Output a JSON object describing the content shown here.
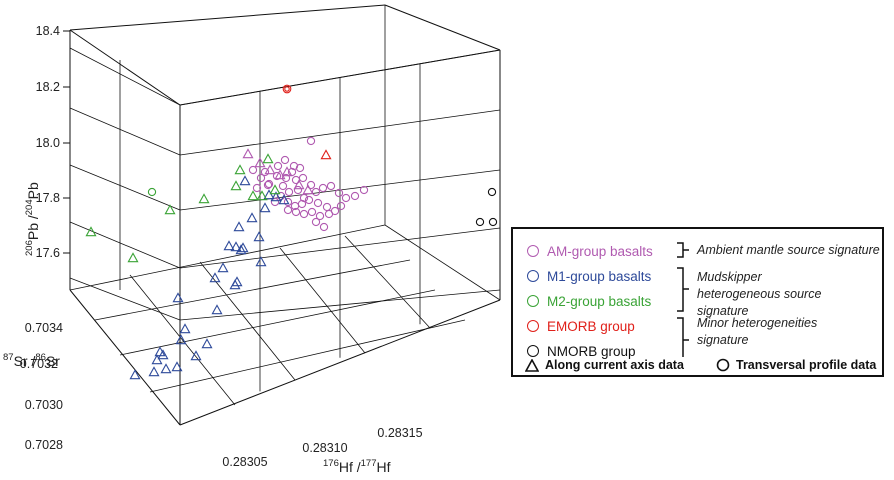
{
  "chart_data": {
    "type": "scatter",
    "title": "",
    "axes": {
      "z": {
        "label_pre": "206",
        "label_mid": "Pb /",
        "label_sup2": "204",
        "label_post": "Pb",
        "range": [
          17.5,
          18.5
        ],
        "ticks": [
          "17.6",
          "17.8",
          "18.0",
          "18.2",
          "18.4"
        ]
      },
      "y": {
        "label_pre": "87",
        "label_mid": "Sr /",
        "label_sup2": "86",
        "label_post": "Sr",
        "range": [
          0.7027,
          0.7035
        ],
        "ticks": [
          "0.7028",
          "0.7030",
          "0.7032",
          "0.7034"
        ]
      },
      "x": {
        "label_pre": "176",
        "label_mid": "Hf /",
        "label_sup2": "177",
        "label_post": "Hf",
        "range": [
          0.283,
          0.2832
        ],
        "ticks": [
          "0.28305",
          "0.28310",
          "0.28315"
        ]
      }
    },
    "series": [
      {
        "name": "AM-group basalts",
        "color": "#b05ab0",
        "points": []
      },
      {
        "name": "M1-group basalts",
        "color": "#2e4a9a",
        "points": []
      },
      {
        "name": "M2-group basalts",
        "color": "#3aa336",
        "points": []
      },
      {
        "name": "EMORB group",
        "color": "#e0201a",
        "points": []
      },
      {
        "name": "NMORB group",
        "color": "#111111",
        "points": []
      }
    ],
    "marker_groups": [
      {
        "name": "Along current axis data",
        "shape": "triangle"
      },
      {
        "name": "Transversal profile data",
        "shape": "circle"
      }
    ],
    "projected_points": {
      "AM_circles": [
        [
          285,
          160
        ],
        [
          292,
          172
        ],
        [
          296,
          180
        ],
        [
          303,
          178
        ],
        [
          311,
          185
        ],
        [
          316,
          192
        ],
        [
          323,
          188
        ],
        [
          331,
          186
        ],
        [
          339,
          193
        ],
        [
          346,
          198
        ],
        [
          355,
          196
        ],
        [
          364,
          190
        ],
        [
          253,
          170
        ],
        [
          261,
          178
        ],
        [
          269,
          184
        ],
        [
          277,
          176
        ],
        [
          283,
          186
        ],
        [
          289,
          192
        ],
        [
          298,
          190
        ],
        [
          304,
          198
        ],
        [
          281,
          196
        ],
        [
          275,
          202
        ],
        [
          288,
          202
        ],
        [
          295,
          206
        ],
        [
          302,
          204
        ],
        [
          309,
          200
        ],
        [
          318,
          203
        ],
        [
          327,
          207
        ],
        [
          335,
          211
        ],
        [
          341,
          206
        ],
        [
          312,
          212
        ],
        [
          320,
          216
        ],
        [
          329,
          214
        ],
        [
          316,
          222
        ],
        [
          324,
          227
        ],
        [
          304,
          214
        ],
        [
          296,
          212
        ],
        [
          288,
          210
        ],
        [
          311,
          141
        ],
        [
          268,
          185
        ],
        [
          257,
          188
        ],
        [
          265,
          172
        ],
        [
          294,
          166
        ],
        [
          300,
          168
        ],
        [
          286,
          178
        ],
        [
          278,
          166
        ]
      ],
      "AM_triangles": [
        [
          248,
          154
        ],
        [
          260,
          163
        ],
        [
          287,
          172
        ],
        [
          299,
          185
        ],
        [
          308,
          190
        ],
        [
          270,
          170
        ],
        [
          280,
          175
        ]
      ],
      "M1_triangles": [
        [
          245,
          181
        ],
        [
          269,
          195
        ],
        [
          276,
          197
        ],
        [
          284,
          200
        ],
        [
          265,
          208
        ],
        [
          252,
          218
        ],
        [
          239,
          227
        ],
        [
          259,
          237
        ],
        [
          243,
          248
        ],
        [
          241,
          250
        ],
        [
          229,
          246
        ],
        [
          236,
          247
        ],
        [
          261,
          262
        ],
        [
          223,
          268
        ],
        [
          215,
          278
        ],
        [
          237,
          282
        ],
        [
          235,
          285
        ],
        [
          178,
          298
        ],
        [
          217,
          310
        ],
        [
          185,
          329
        ],
        [
          181,
          340
        ],
        [
          207,
          344
        ],
        [
          160,
          352
        ],
        [
          163,
          355
        ],
        [
          157,
          360
        ],
        [
          135,
          375
        ],
        [
          154,
          372
        ],
        [
          166,
          369
        ],
        [
          177,
          367
        ],
        [
          196,
          356
        ]
      ],
      "M2_triangles": [
        [
          268,
          159
        ],
        [
          240,
          170
        ],
        [
          253,
          196
        ],
        [
          236,
          186
        ],
        [
          204,
          199
        ],
        [
          170,
          210
        ],
        [
          133,
          258
        ],
        [
          91,
          232
        ],
        [
          262,
          196
        ],
        [
          275,
          190
        ]
      ],
      "M2_circles": [
        [
          152,
          192
        ]
      ],
      "EMORB_circles": [
        [
          287,
          89
        ]
      ],
      "EMORB_triangles": [
        [
          326,
          155
        ]
      ],
      "NMORB_circles": [
        [
          492,
          192
        ],
        [
          480,
          222
        ],
        [
          493,
          222
        ]
      ]
    }
  },
  "legend": {
    "items": [
      {
        "label": "AM-group basalts",
        "color": "#b05ab0"
      },
      {
        "label": "M1-group basalts",
        "color": "#2e4a9a"
      },
      {
        "label": "M2-group basalts",
        "color": "#3aa336"
      },
      {
        "label": "EMORB group",
        "color": "#e0201a"
      },
      {
        "label": "NMORB group",
        "color": "#111111"
      }
    ],
    "signatures": [
      "Ambient mantle source signature",
      "Mudskipper heterogeneous source signature",
      "Minor heterogeneities signature"
    ],
    "footer": {
      "triangle_label": "Along current axis data",
      "circle_label": "Transversal profile data"
    }
  }
}
